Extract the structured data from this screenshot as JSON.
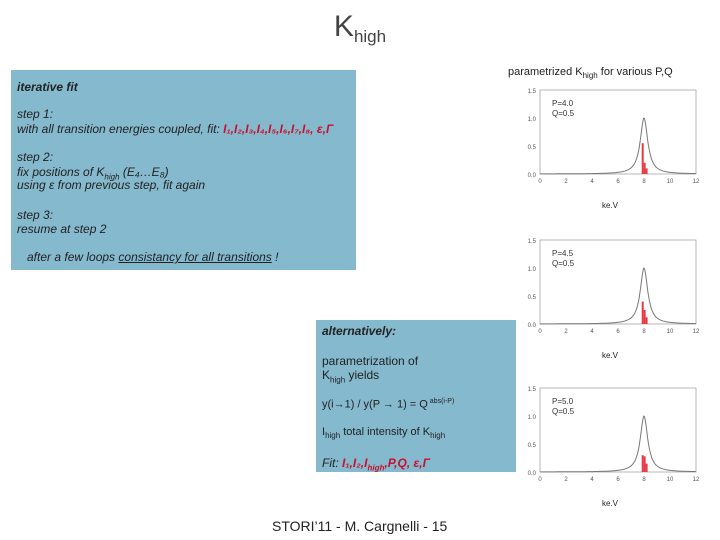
{
  "slide": {
    "title_main": "K",
    "title_sub": "high",
    "footer": "STORI’11 - M. Cargnelli - 15"
  },
  "right_panel": {
    "title_pre": "parametrized K",
    "title_sub": "high",
    "title_post": " for various P,Q"
  },
  "iterative_box": {
    "heading": "iterative fit",
    "step1_label": "step 1:",
    "step1_text": "with all transition energies coupled, fit: ",
    "step1_fit": [
      "I₁,I₂,I₃,I₄,I₅,I₆,I₇,I₈,",
      "ε,Γ"
    ],
    "step2_label": "step 2:",
    "step2_text_pre": "fix  positions of K",
    "step2_text_sub": "high",
    "step2_text_post": " (E₄…E₈)",
    "step2_text2": "using ε from previous step, fit again",
    "step3_label": "step 3:",
    "step3_text": "resume at step 2",
    "loop_pre": "after a few loops ",
    "loop_underlined": "consistancy for all transitions",
    "loop_post": " !"
  },
  "alt_box": {
    "heading": "alternatively:",
    "line1": "parametrization of",
    "line2_pre": "K",
    "line2_sub": "high",
    "line2_post": " yields",
    "formula_pre": "y(i→1) / y(P → 1) = Q",
    "formula_sup": " abs(i-P)",
    "ihigh_pre": "I",
    "ihigh_sub": "high",
    "ihigh_mid": "  total intensity of K",
    "ihigh_sub2": "high",
    "fit_pre": "Fit: ",
    "fit_vars": [
      "I₁,I₂,I",
      "high",
      ",P,Q,",
      "ε,Γ"
    ]
  },
  "chart_data": [
    {
      "type": "line",
      "legend": [
        "P=4.0",
        "Q=0.5"
      ],
      "xlabel": "ke.V",
      "yticks": [
        "1.5",
        "1.0",
        "0.5",
        "0.0"
      ],
      "xticks": [
        "0",
        "2",
        "4",
        "6",
        "8",
        "10",
        "12"
      ],
      "xlim": [
        0,
        12
      ],
      "ylim": [
        0,
        1.5
      ],
      "peak_center": 8.0,
      "red_bars": [
        {
          "x": 7.9,
          "h": 0.55
        },
        {
          "x": 8.05,
          "h": 0.2
        },
        {
          "x": 8.2,
          "h": 0.1
        }
      ]
    },
    {
      "type": "line",
      "legend": [
        "P=4.5",
        "Q=0.5"
      ],
      "xlabel": "ke.V",
      "yticks": [
        "1.5",
        "1.0",
        "0.5",
        "0.0"
      ],
      "xticks": [
        "0",
        "2",
        "4",
        "6",
        "8",
        "10",
        "12"
      ],
      "xlim": [
        0,
        12
      ],
      "ylim": [
        0,
        1.5
      ],
      "peak_center": 8.0,
      "red_bars": [
        {
          "x": 7.9,
          "h": 0.4
        },
        {
          "x": 8.05,
          "h": 0.25
        },
        {
          "x": 8.2,
          "h": 0.12
        }
      ]
    },
    {
      "type": "line",
      "legend": [
        "P=5.0",
        "Q=0.5"
      ],
      "xlabel": "ke.V",
      "yticks": [
        "1.5",
        "1.0",
        "0.5",
        "0.0"
      ],
      "xticks": [
        "0",
        "2",
        "4",
        "6",
        "8",
        "10",
        "12"
      ],
      "xlim": [
        0,
        12
      ],
      "ylim": [
        0,
        1.5
      ],
      "peak_center": 8.0,
      "red_bars": [
        {
          "x": 7.9,
          "h": 0.3
        },
        {
          "x": 8.05,
          "h": 0.28
        },
        {
          "x": 8.2,
          "h": 0.15
        }
      ]
    }
  ]
}
